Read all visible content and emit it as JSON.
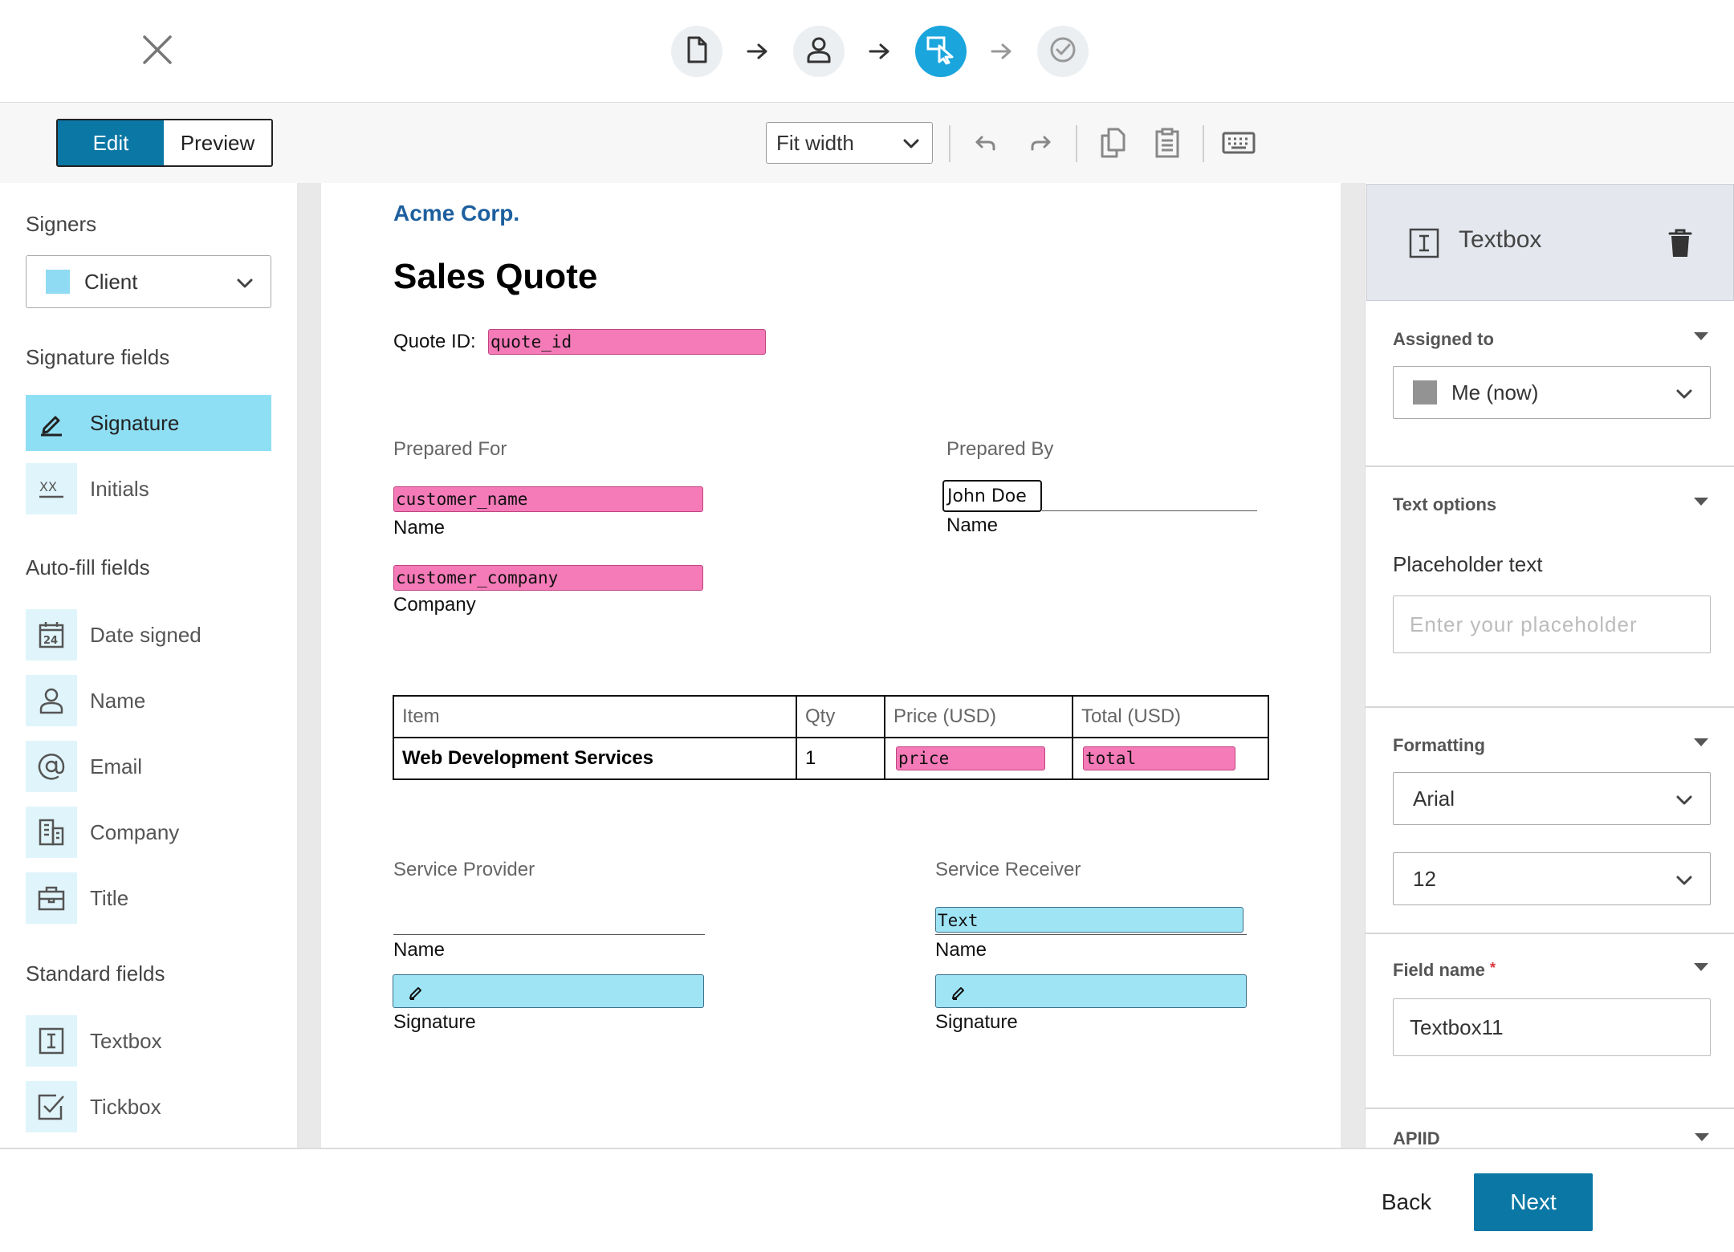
{
  "stepper": {
    "steps": [
      {
        "name": "document",
        "icon": "document-icon"
      },
      {
        "name": "recipients",
        "icon": "person-icon"
      },
      {
        "name": "fields",
        "icon": "cursor-field-icon"
      },
      {
        "name": "review",
        "icon": "check-circle-icon"
      }
    ],
    "active_step": 2
  },
  "toolbar": {
    "edit_label": "Edit",
    "preview_label": "Preview",
    "zoom_value": "Fit width"
  },
  "sidebar": {
    "signers_heading": "Signers",
    "signer_selected": "Client",
    "signature_fields_heading": "Signature fields",
    "signature_fields": [
      {
        "label": "Signature",
        "icon": "pen-icon"
      },
      {
        "label": "Initials",
        "icon": "initials-icon"
      }
    ],
    "autofill_heading": "Auto-fill fields",
    "autofill_fields": [
      {
        "label": "Date signed",
        "icon": "calendar-icon"
      },
      {
        "label": "Name",
        "icon": "person-icon"
      },
      {
        "label": "Email",
        "icon": "at-icon"
      },
      {
        "label": "Company",
        "icon": "building-icon"
      },
      {
        "label": "Title",
        "icon": "briefcase-icon"
      }
    ],
    "standard_heading": "Standard fields",
    "standard_fields": [
      {
        "label": "Textbox",
        "icon": "textbox-icon"
      },
      {
        "label": "Tickbox",
        "icon": "tickbox-icon"
      }
    ]
  },
  "document": {
    "brand": "Acme Corp.",
    "title": "Sales Quote",
    "quote_id_label": "Quote ID:",
    "quote_id_field": "quote_id",
    "prepared_for": "Prepared For",
    "prepared_by": "Prepared By",
    "customer_name_field": "customer_name",
    "name_label": "Name",
    "preparer_name": "John Doe",
    "customer_company_field": "customer_company",
    "company_label": "Company",
    "table": {
      "headers": [
        "Item",
        "Qty",
        "Price (USD)",
        "Total (USD)"
      ],
      "row": {
        "item": "Web Development Services",
        "qty": "1",
        "price_field": "price",
        "total_field": "total"
      }
    },
    "service_provider": "Service Provider",
    "service_receiver": "Service Receiver",
    "text_field": "Text",
    "signature_label": "Signature"
  },
  "panel": {
    "field_type": "Textbox",
    "assigned_to_title": "Assigned to",
    "assigned_to_value": "Me (now)",
    "text_options_title": "Text options",
    "placeholder_label": "Placeholder text",
    "placeholder_hint": "Enter your placeholder",
    "formatting_title": "Formatting",
    "font_value": "Arial",
    "size_value": "12",
    "field_name_title": "Field name",
    "required_mark": "*",
    "field_name_value": "Textbox11",
    "next_section_title": "APIID"
  },
  "footer": {
    "back_label": "Back",
    "next_label": "Next"
  },
  "colors": {
    "accent": "#0a77a5",
    "active_step": "#1aa5dd",
    "signer_client": "#8fdbf3",
    "field_pink": "#f57ab8",
    "required": "#d9363e"
  }
}
